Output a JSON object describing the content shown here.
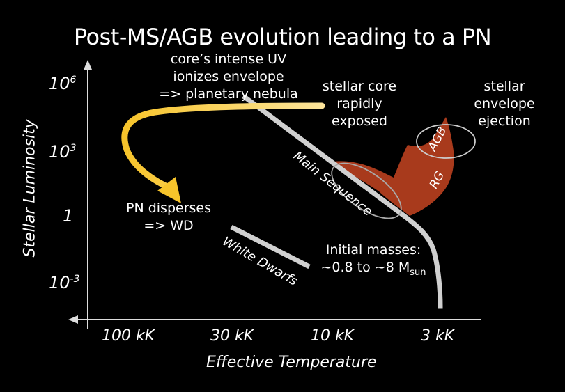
{
  "title": "Post-MS/AGB evolution leading to a PN",
  "axes": {
    "y_label": "Stellar Luminosity",
    "x_label": "Effective Temperature",
    "y_ticks": [
      {
        "base": "10",
        "exp": "6"
      },
      {
        "base": "10",
        "exp": "3"
      },
      {
        "base": "1",
        "exp": ""
      },
      {
        "base": "10",
        "exp": "-3"
      }
    ],
    "x_ticks": [
      "100 kK",
      "30 kK",
      "10 kK",
      "3 kK"
    ]
  },
  "annotations": {
    "core_uv": [
      "core’s intense UV",
      "ionizes envelope",
      "=> planetary nebula"
    ],
    "core_exposed": [
      "stellar core",
      "rapidly",
      "exposed"
    ],
    "envelope_ejection": [
      "stellar",
      "envelope",
      "ejection"
    ],
    "pn_disperses": [
      "PN disperses",
      "=> WD"
    ],
    "initial_masses": {
      "line1": "Initial masses:",
      "line2_main": "~0.8 to ~8 M",
      "line2_sub": "sun"
    }
  },
  "region_labels": {
    "main_sequence": "Main Sequence",
    "white_dwarfs": "White Dwarfs",
    "agb": "AGB",
    "rg": "RG"
  },
  "colors": {
    "background": "#000000",
    "text": "#ffffff",
    "track_arrow": "#f2c230",
    "giant_branch": "#a83a1c",
    "main_sequence": "#d0d0d0",
    "axes": "#dddddd"
  }
}
